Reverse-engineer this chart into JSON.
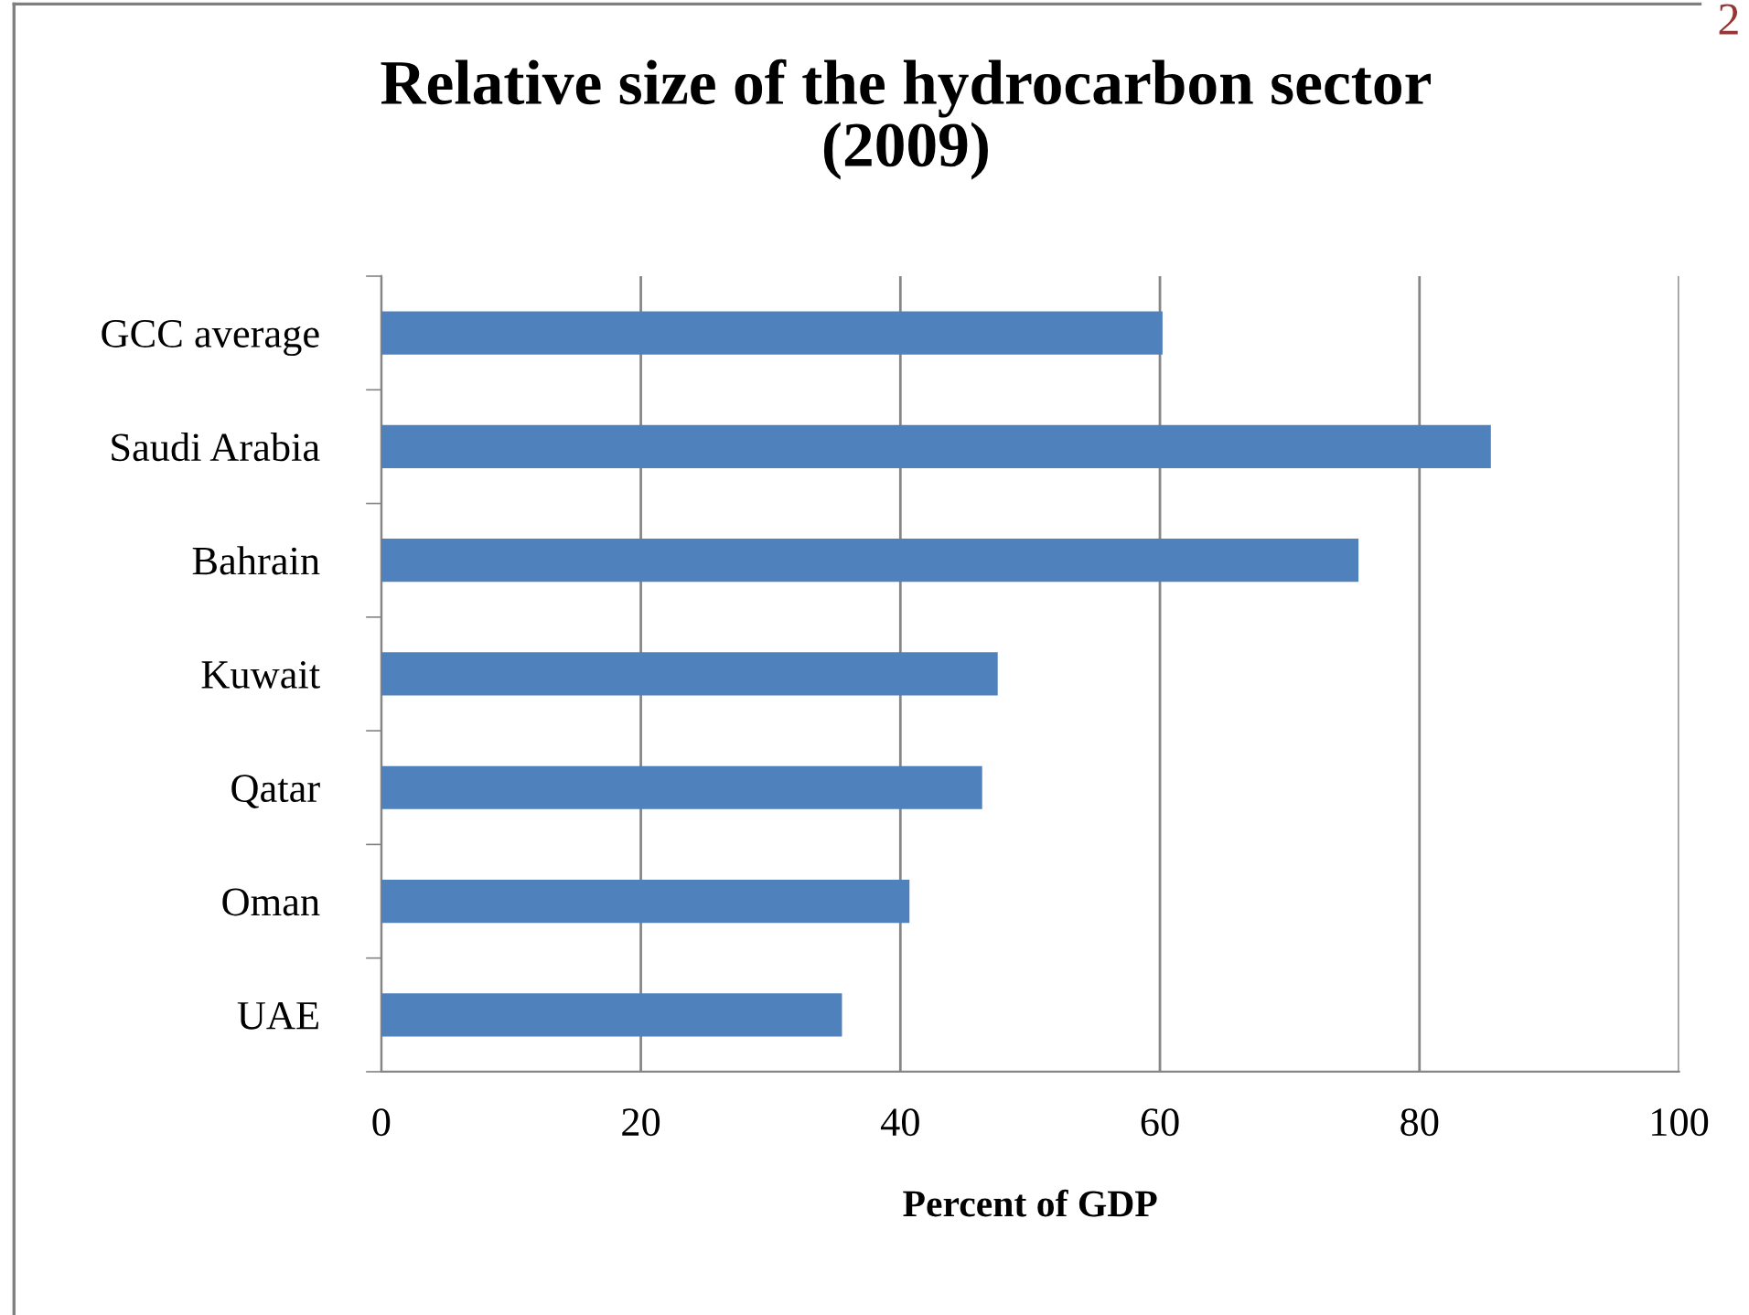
{
  "chart_data": {
    "type": "bar",
    "orientation": "horizontal",
    "title": "Relative size of the hydrocarbon sector\n(2009)",
    "xlabel": "Percent of GDP",
    "categories": [
      "GCC average",
      "Saudi Arabia",
      "Bahrain",
      "Kuwait",
      "Qatar",
      "Oman",
      "UAE"
    ],
    "values": [
      60.2,
      85.5,
      75.3,
      47.5,
      46.3,
      40.7,
      35.5
    ],
    "color": "#4f81bd",
    "xlim": [
      0,
      100
    ],
    "xticks": [
      0,
      20,
      40,
      60,
      80,
      100
    ],
    "grid": "x",
    "annotations": [
      "2"
    ]
  }
}
